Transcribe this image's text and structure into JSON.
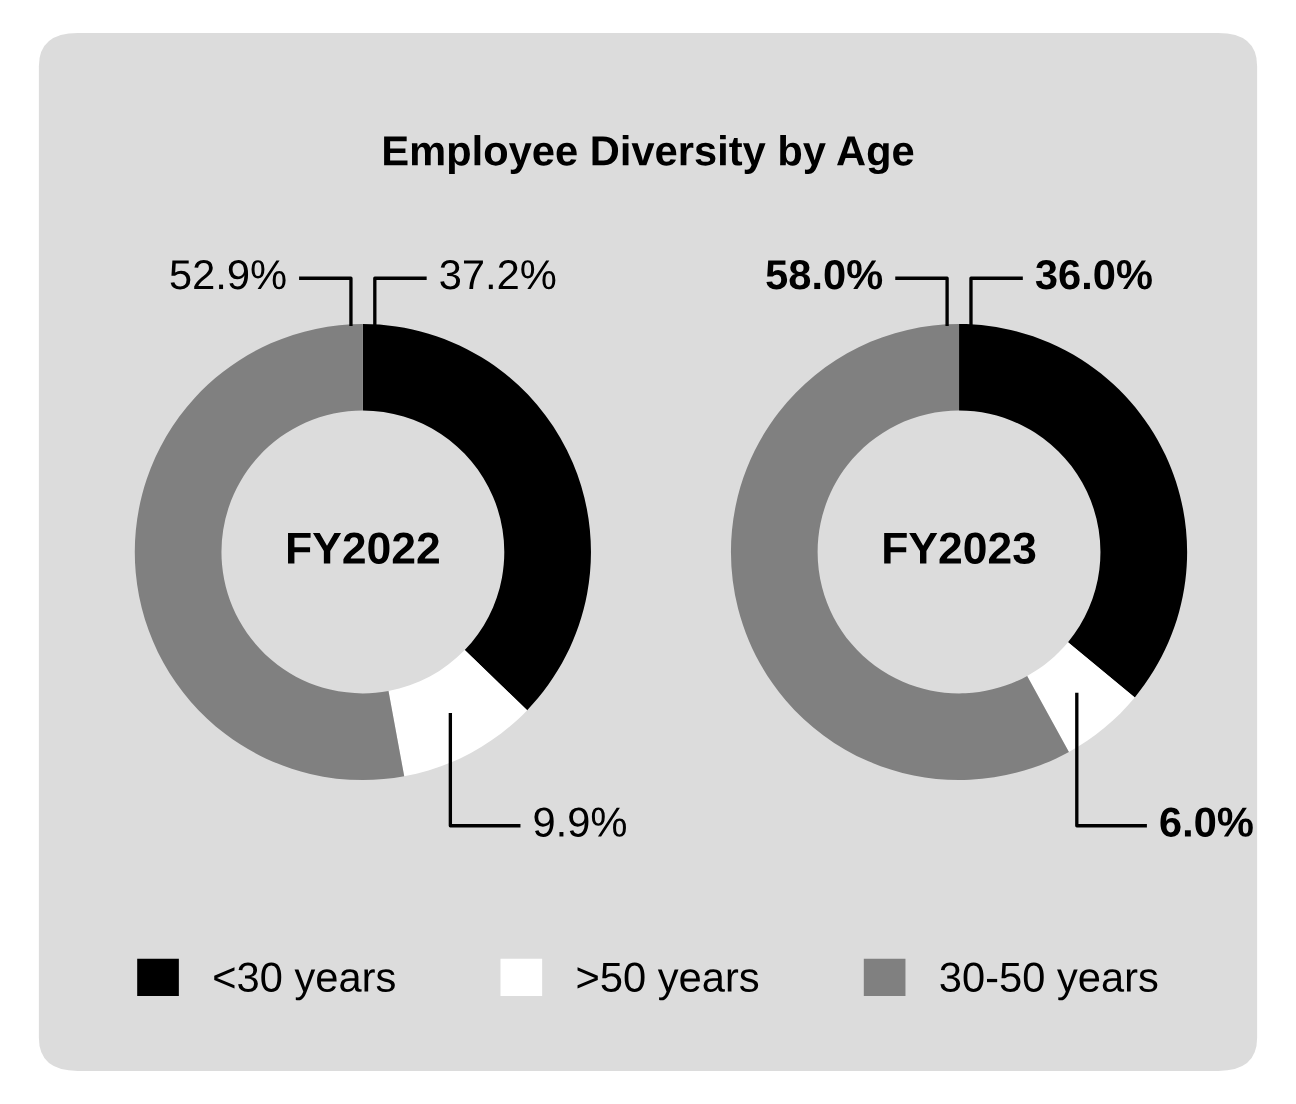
{
  "chart_data": [
    {
      "type": "donut",
      "title": "Employee Diversity by Age",
      "categories": [
        "<30 years",
        ">50 years",
        "30-50 years"
      ],
      "values": [
        37.2,
        9.9,
        52.9
      ],
      "colors": [
        "#000000",
        "#ffffff",
        "#808080"
      ],
      "value_labels": [
        "37.2%",
        "9.9%",
        "52.9%"
      ],
      "annotations": [
        "FY2022"
      ],
      "legend": "bottom"
    },
    {
      "type": "donut",
      "categories": [
        null,
        null,
        null
      ],
      "values": [
        36.0,
        6.0,
        58.0
      ],
      "colors": [
        "#000000",
        "#ffffff",
        "#808080"
      ],
      "value_labels": [
        "36.0%",
        "6.0%",
        "58.0%"
      ],
      "annotations": [
        "FY2023"
      ]
    }
  ]
}
